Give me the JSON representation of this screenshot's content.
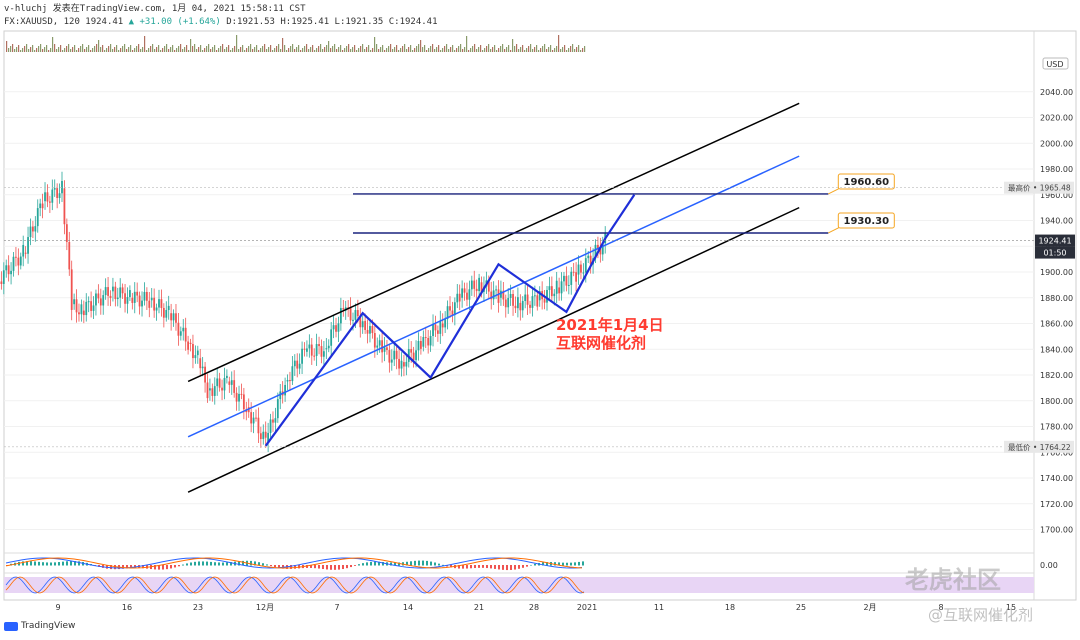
{
  "header": {
    "line1": "v-hluchj 发表在TradingView.com, 1月 04, 2021 15:58:11 CST",
    "symbol_prefix": "FX:XAUUSD, 120",
    "last": "1924.41",
    "change": "▲ +31.00 (+1.64%)",
    "ohlc": "D:1921.53 H:1925.41 L:1921.35 C:1924.41"
  },
  "footer": {
    "brand": "TradingView"
  },
  "watermark": {
    "main": "老虎社区",
    "sub": "@互联网催化剂"
  },
  "chart_data": {
    "type": "candlestick",
    "title": "",
    "xlabel": "",
    "ylabel": "",
    "currency_label": "USD",
    "y_ticks": [
      1700,
      1720,
      1740,
      1760,
      1780,
      1800,
      1820,
      1840,
      1860,
      1880,
      1900,
      1920,
      1940,
      1960,
      1980,
      2000,
      2020,
      2040
    ],
    "ylim": [
      1688,
      2052
    ],
    "x_ticks": [
      "9",
      "16",
      "23",
      "12月",
      "7",
      "14",
      "21",
      "28",
      "2021",
      "11",
      "18",
      "25",
      "2月",
      "8",
      "15"
    ],
    "price_tags": [
      {
        "label": "最高价",
        "value": 1965.48,
        "style": "grey"
      },
      {
        "label": "",
        "value": 1924.41,
        "style": "dark"
      },
      {
        "label": "",
        "value": "01:50",
        "style": "dark-timer"
      },
      {
        "label": "最低价",
        "value": 1764.22,
        "style": "grey"
      }
    ],
    "horizontal_levels": [
      {
        "value": 1960.6,
        "label": "1960.60"
      },
      {
        "value": 1930.3,
        "label": "1930.30"
      }
    ],
    "channel_lines": [
      {
        "name": "upper",
        "color": "#000000",
        "from": [
          "Nov 22",
          1815
        ],
        "to": [
          "Jan 24",
          2031
        ]
      },
      {
        "name": "middle",
        "color": "#2962ff",
        "from": [
          "Nov 22",
          1772
        ],
        "to": [
          "Jan 24",
          1990
        ]
      },
      {
        "name": "lower",
        "color": "#000000",
        "from": [
          "Nov 22",
          1729
        ],
        "to": [
          "Jan 24",
          1950
        ]
      }
    ],
    "zigzag": [
      [
        "Nov 30",
        1765
      ],
      [
        "Dec 10",
        1868
      ],
      [
        "Dec 17",
        1818
      ],
      [
        "Dec 24",
        1906
      ],
      [
        "Dec 31",
        1869
      ],
      [
        "Jan 4",
        1926
      ],
      [
        "Jan 7",
        1960
      ]
    ],
    "price_path": [
      [
        "Nov 2",
        1890
      ],
      [
        "Nov 5",
        1915
      ],
      [
        "Nov 7",
        1955
      ],
      [
        "Nov 9",
        1965
      ],
      [
        "Nov 10",
        1875
      ],
      [
        "Nov 11",
        1870
      ],
      [
        "Nov 14",
        1885
      ],
      [
        "Nov 16",
        1880
      ],
      [
        "Nov 18",
        1878
      ],
      [
        "Nov 20",
        1868
      ],
      [
        "Nov 22",
        1845
      ],
      [
        "Nov 23",
        1833
      ],
      [
        "Nov 24",
        1808
      ],
      [
        "Nov 26",
        1815
      ],
      [
        "Nov 28",
        1795
      ],
      [
        "Nov 30",
        1768
      ],
      [
        "Dec 2",
        1815
      ],
      [
        "Dec 4",
        1838
      ],
      [
        "Dec 6",
        1840
      ],
      [
        "Dec 8",
        1870
      ],
      [
        "Dec 10",
        1862
      ],
      [
        "Dec 12",
        1838
      ],
      [
        "Dec 14",
        1830
      ],
      [
        "Dec 16",
        1842
      ],
      [
        "Dec 18",
        1860
      ],
      [
        "Dec 20",
        1880
      ],
      [
        "Dec 22",
        1892
      ],
      [
        "Dec 24",
        1880
      ],
      [
        "Dec 26",
        1876
      ],
      [
        "Dec 28",
        1878
      ],
      [
        "Dec 30",
        1888
      ],
      [
        "Jan 1",
        1898
      ],
      [
        "Jan 4",
        1924
      ]
    ],
    "annotation": {
      "lines": [
        "2021年1月4日",
        "互联网催化剂"
      ],
      "color": "#ff3b30"
    },
    "indicators": [
      "MACD",
      "Stochastic RSI"
    ]
  }
}
